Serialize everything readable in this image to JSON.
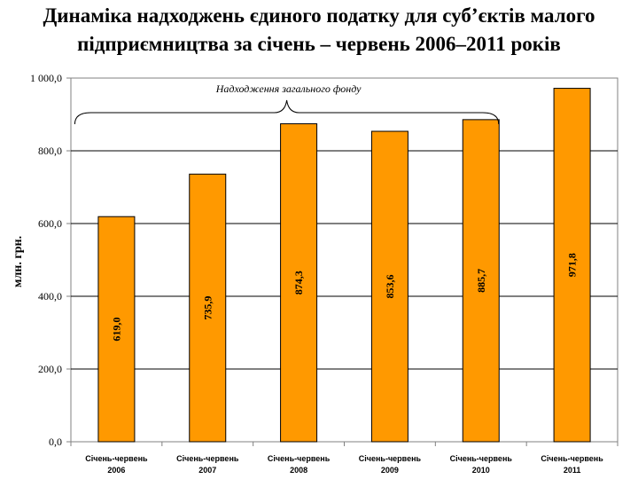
{
  "title_line1": "Динаміка надходжень єдиного податку для суб’єктів малого",
  "title_line2": "підприємництва за січень – червень 2006–2011 років",
  "chart_data": {
    "type": "bar",
    "categories": [
      [
        "Січень-червень",
        "2006"
      ],
      [
        "Січень-червень",
        "2007"
      ],
      [
        "Січень-червень",
        "2008"
      ],
      [
        "Січень-червень",
        "2009"
      ],
      [
        "Січень-червень",
        "2010"
      ],
      [
        "Січень-червень",
        "2011"
      ]
    ],
    "values": [
      619.0,
      735.9,
      874.3,
      853.6,
      885.7,
      971.8
    ],
    "data_labels": [
      "619,0",
      "735,9",
      "874,3",
      "853,6",
      "885,7",
      "971,8"
    ],
    "ylabel": "млн. грн.",
    "ylim": [
      0,
      1000
    ],
    "yticks": [
      0,
      200,
      400,
      600,
      800,
      1000
    ],
    "ytick_labels": [
      "0,0",
      "200,0",
      "400,0",
      "600,0",
      "800,0",
      "1 000,0"
    ],
    "annotation": "Надходження загального фонду",
    "grid": true,
    "bar_color": "#FF9900",
    "bar_edge_color": "#000000"
  }
}
